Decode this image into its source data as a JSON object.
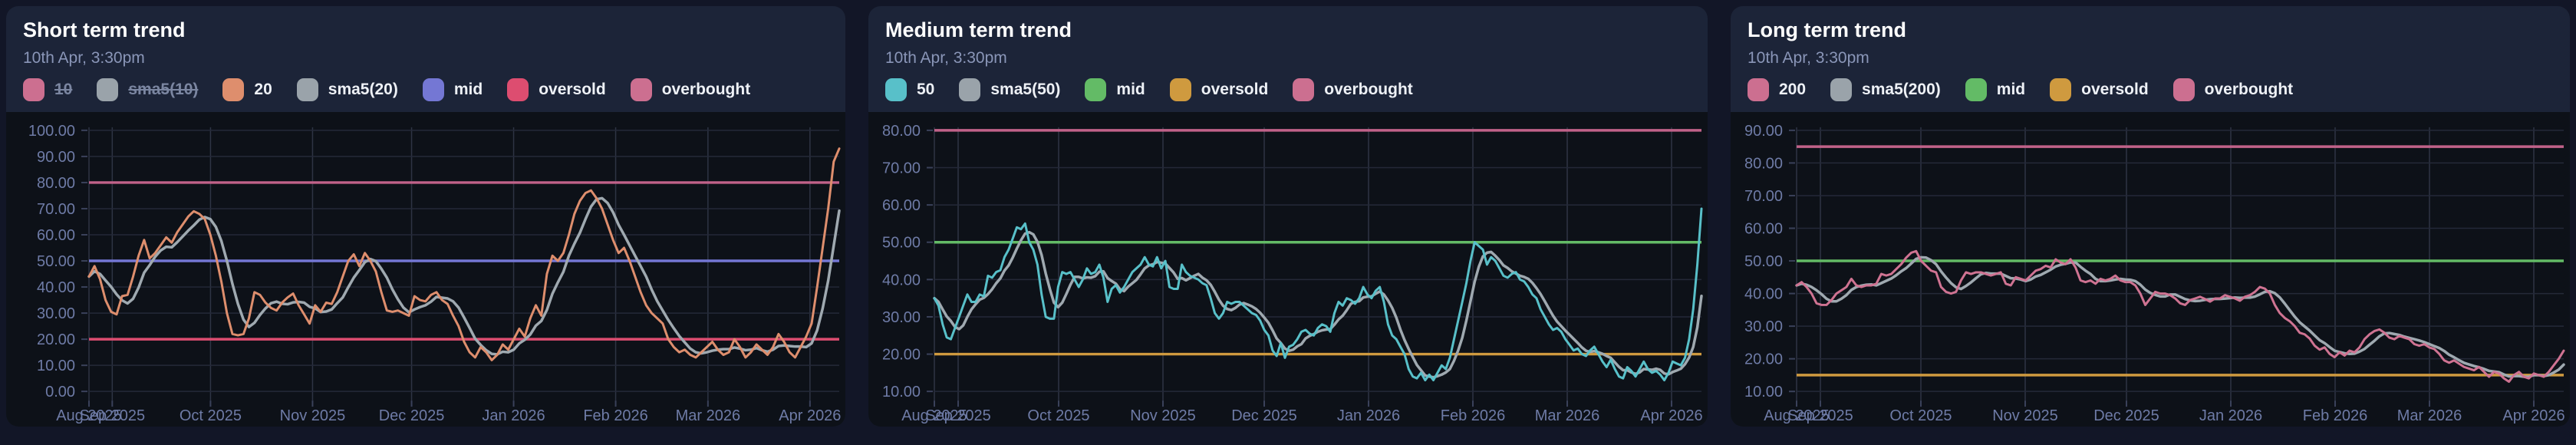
{
  "cards": [
    {
      "title": "Short term trend",
      "subtitle": "10th Apr, 3:30pm",
      "legend": [
        {
          "label": "10",
          "color": "#cc6f90",
          "disabled": true
        },
        {
          "label": "sma5(10)",
          "color": "#9aa3aa",
          "disabled": true
        },
        {
          "label": "20",
          "color": "#de8e6d",
          "disabled": false
        },
        {
          "label": "sma5(20)",
          "color": "#9aa3aa",
          "disabled": false
        },
        {
          "label": "mid",
          "color": "#7477d4",
          "disabled": false
        },
        {
          "label": "oversold",
          "color": "#dd4d70",
          "disabled": false
        },
        {
          "label": "overbought",
          "color": "#cc6f90",
          "disabled": false
        }
      ]
    },
    {
      "title": "Medium term trend",
      "subtitle": "10th Apr, 3:30pm",
      "legend": [
        {
          "label": "50",
          "color": "#58c0c9",
          "disabled": false
        },
        {
          "label": "sma5(50)",
          "color": "#9aa3aa",
          "disabled": false
        },
        {
          "label": "mid",
          "color": "#63bb66",
          "disabled": false
        },
        {
          "label": "oversold",
          "color": "#cf9a3f",
          "disabled": false
        },
        {
          "label": "overbought",
          "color": "#cc6f90",
          "disabled": false
        }
      ]
    },
    {
      "title": "Long term trend",
      "subtitle": "10th Apr, 3:30pm",
      "legend": [
        {
          "label": "200",
          "color": "#cc6f90",
          "disabled": false
        },
        {
          "label": "sma5(200)",
          "color": "#9aa3aa",
          "disabled": false
        },
        {
          "label": "mid",
          "color": "#63bb66",
          "disabled": false
        },
        {
          "label": "oversold",
          "color": "#cf9a3f",
          "disabled": false
        },
        {
          "label": "overbought",
          "color": "#cc6f90",
          "disabled": false
        }
      ]
    }
  ],
  "chart_data": [
    {
      "type": "line",
      "title": "Short term trend",
      "xlabel": "",
      "ylabel": "",
      "ylim": [
        0,
        100
      ],
      "yticks": [
        0,
        10,
        20,
        30,
        40,
        50,
        60,
        70,
        80,
        90,
        100
      ],
      "grid": true,
      "legend_position": "top",
      "plot_left": 108,
      "x_ticks": [
        {
          "label": "Aug 2025",
          "f": 0.0
        },
        {
          "label": "Sep 2025",
          "f": 0.031
        },
        {
          "label": "Oct 2025",
          "f": 0.162
        },
        {
          "label": "Nov 2025",
          "f": 0.298
        },
        {
          "label": "Dec 2025",
          "f": 0.43
        },
        {
          "label": "Jan 2026",
          "f": 0.566
        },
        {
          "label": "Feb 2026",
          "f": 0.702
        },
        {
          "label": "Mar 2026",
          "f": 0.825
        },
        {
          "label": "Apr 2026",
          "f": 0.961
        }
      ],
      "ref_lines": [
        {
          "name": "overbought",
          "value": 80,
          "color": "#c16289"
        },
        {
          "name": "mid",
          "value": 50,
          "color": "#7477d4"
        },
        {
          "name": "oversold",
          "value": 20,
          "color": "#dd4d70"
        }
      ],
      "series": [
        {
          "name": "20",
          "color": "#de8e6d",
          "values": [
            44,
            48,
            43,
            35,
            30.5,
            29.5,
            36.5,
            37,
            44,
            52,
            58,
            51,
            53,
            56,
            59,
            57,
            61,
            64,
            67,
            69,
            68,
            66,
            60,
            52,
            42,
            30,
            22,
            21.5,
            22,
            28,
            38,
            37,
            34,
            32,
            31,
            34,
            36,
            37.5,
            33,
            29.5,
            26,
            33,
            30.5,
            34,
            33.5,
            38,
            44,
            50,
            52.5,
            48,
            53,
            50,
            46,
            38,
            31,
            30.5,
            31,
            30,
            29,
            36.5,
            35,
            34.5,
            37,
            38,
            35,
            33.5,
            29,
            25,
            19,
            15,
            13,
            17,
            15,
            12,
            14,
            18,
            16,
            20,
            24,
            21,
            28,
            33,
            29,
            45,
            52,
            50,
            53,
            60,
            68,
            73,
            76,
            77,
            74,
            70,
            64,
            58,
            53,
            55,
            50,
            44,
            38,
            33,
            30,
            28,
            26,
            20,
            17,
            15,
            16,
            14,
            13,
            15,
            17,
            19,
            16,
            14,
            15,
            20,
            17,
            13,
            15,
            18,
            16,
            14,
            17,
            22,
            19,
            15,
            13,
            17,
            21,
            26,
            40,
            55,
            70,
            88,
            93
          ]
        },
        {
          "name": "sma5(20)",
          "color": "#9fa9b0",
          "sma_of": "20",
          "sma_window": 5
        }
      ]
    },
    {
      "type": "line",
      "title": "Medium term trend",
      "xlabel": "",
      "ylabel": "",
      "ylim": [
        10,
        80
      ],
      "yticks": [
        10,
        20,
        30,
        40,
        50,
        60,
        70,
        80
      ],
      "grid": true,
      "legend_position": "top",
      "plot_left": 86,
      "x_ticks": [
        {
          "label": "Aug 2025",
          "f": 0.0
        },
        {
          "label": "Sep 2025",
          "f": 0.031
        },
        {
          "label": "Oct 2025",
          "f": 0.162
        },
        {
          "label": "Nov 2025",
          "f": 0.298
        },
        {
          "label": "Dec 2025",
          "f": 0.43
        },
        {
          "label": "Jan 2026",
          "f": 0.566
        },
        {
          "label": "Feb 2026",
          "f": 0.702
        },
        {
          "label": "Mar 2026",
          "f": 0.825
        },
        {
          "label": "Apr 2026",
          "f": 0.961
        }
      ],
      "ref_lines": [
        {
          "name": "overbought",
          "value": 80,
          "color": "#c16289"
        },
        {
          "name": "mid",
          "value": 50,
          "color": "#63bb66"
        },
        {
          "name": "oversold",
          "value": 20,
          "color": "#cf9a3f"
        }
      ],
      "series": [
        {
          "name": "50",
          "color": "#58c0c9",
          "values": [
            35,
            33,
            28,
            24.5,
            24,
            27,
            30,
            33,
            36,
            34,
            34,
            36,
            35.5,
            41,
            40.5,
            42,
            42.5,
            46,
            48,
            51,
            54,
            53.5,
            55,
            50,
            48,
            44,
            36,
            30,
            29.5,
            29.5,
            38,
            42,
            41.5,
            42,
            40,
            38,
            40,
            43,
            41.5,
            42,
            44,
            40.5,
            34,
            37.5,
            38.5,
            36.5,
            38,
            40,
            42,
            43,
            44,
            46,
            44,
            43.5,
            46,
            43,
            45,
            38,
            37.5,
            37.5,
            44,
            42,
            41,
            40.5,
            40,
            39,
            38.5,
            35,
            31,
            29.5,
            31,
            34,
            33.5,
            34,
            34,
            33,
            32,
            31,
            30.5,
            29,
            26.5,
            25,
            21,
            19.5,
            23,
            19,
            22,
            22.5,
            24,
            26,
            26.5,
            25.5,
            25,
            27,
            28,
            27.5,
            26,
            31,
            34,
            33,
            35,
            34.5,
            33.5,
            35,
            38,
            36,
            35,
            37,
            38,
            34,
            28,
            25,
            24,
            22,
            20,
            16,
            14,
            13.5,
            15,
            13,
            14.5,
            13,
            15,
            17,
            16,
            19,
            24,
            29,
            34,
            39,
            45,
            50,
            49,
            48,
            44,
            46,
            45,
            43,
            41,
            40.5,
            41.5,
            42,
            40,
            39.5,
            38,
            36,
            35,
            32,
            30,
            28,
            26.5,
            27,
            26,
            24,
            22.5,
            21,
            21.5,
            20,
            19.5,
            21,
            22,
            20,
            18,
            16.5,
            18.5,
            16,
            14,
            13.5,
            16.5,
            15.5,
            14,
            16,
            18,
            16,
            15,
            15.5,
            14.5,
            13,
            15,
            18,
            17.5,
            17,
            19,
            24,
            32,
            44,
            59
          ]
        },
        {
          "name": "sma5(50)",
          "color": "#9fa9b0",
          "sma_of": "50",
          "sma_window": 5
        }
      ]
    },
    {
      "type": "line",
      "title": "Long term trend",
      "xlabel": "",
      "ylabel": "",
      "ylim": [
        10,
        90
      ],
      "yticks": [
        10,
        20,
        30,
        40,
        50,
        60,
        70,
        80,
        90
      ],
      "grid": true,
      "legend_position": "top",
      "plot_left": 86,
      "x_ticks": [
        {
          "label": "Aug 2025",
          "f": 0.0
        },
        {
          "label": "Sep 2025",
          "f": 0.031
        },
        {
          "label": "Oct 2025",
          "f": 0.162
        },
        {
          "label": "Nov 2025",
          "f": 0.298
        },
        {
          "label": "Dec 2025",
          "f": 0.43
        },
        {
          "label": "Jan 2026",
          "f": 0.566
        },
        {
          "label": "Feb 2026",
          "f": 0.702
        },
        {
          "label": "Mar 2026",
          "f": 0.825
        },
        {
          "label": "Apr 2026",
          "f": 0.961
        }
      ],
      "ref_lines": [
        {
          "name": "overbought",
          "value": 85,
          "color": "#c16289"
        },
        {
          "name": "mid",
          "value": 50,
          "color": "#63bb66"
        },
        {
          "name": "oversold",
          "value": 15,
          "color": "#cf9a3f"
        }
      ],
      "series": [
        {
          "name": "200",
          "color": "#cf7392",
          "values": [
            42.5,
            43.5,
            42,
            40,
            37,
            36.5,
            36.5,
            38,
            40,
            41,
            42,
            44.5,
            42.5,
            42,
            42.5,
            42.5,
            43,
            46,
            45.5,
            46,
            47.5,
            49,
            51,
            52.5,
            53,
            50,
            48.5,
            47,
            46.5,
            42,
            40.5,
            40,
            40.5,
            44,
            46.5,
            46,
            46.5,
            46.5,
            46,
            45.5,
            46,
            46.5,
            43,
            42.5,
            45,
            44.5,
            44,
            45.5,
            47,
            47.5,
            48.5,
            48,
            50.5,
            49.5,
            49,
            50.5,
            48,
            44,
            43.5,
            44,
            43,
            44.5,
            44,
            44.5,
            45.5,
            44,
            43.5,
            43.5,
            42.5,
            40,
            36.5,
            38.5,
            40.5,
            40,
            40,
            39.5,
            38.5,
            37,
            36.5,
            38,
            38.5,
            39,
            38.3,
            37.5,
            38.5,
            38.5,
            39.5,
            39,
            38.5,
            37.8,
            39,
            39.5,
            40.5,
            42,
            41.5,
            40,
            36.5,
            34,
            32.5,
            31.5,
            30,
            28,
            27.5,
            26.2,
            24,
            22.8,
            23.5,
            21.5,
            20.5,
            22,
            21,
            22.5,
            22,
            23.5,
            26,
            27.5,
            28.5,
            29,
            28,
            26.5,
            26,
            27,
            26.5,
            26,
            24.5,
            24,
            24.5,
            23.5,
            23,
            21.5,
            19.5,
            18.8,
            19.5,
            18.5,
            17.5,
            17,
            16.5,
            17.5,
            16,
            14.5,
            16,
            15.5,
            14,
            13,
            15,
            16,
            14.5,
            14,
            15.5,
            15,
            14.5,
            16,
            18,
            20,
            22.5
          ]
        },
        {
          "name": "sma5(200)",
          "color": "#9fa9b0",
          "sma_of": "200",
          "sma_window": 5
        }
      ]
    }
  ],
  "style": {
    "page_bg": "#121627",
    "card_bg": "#1c2438",
    "plot_bg": "#0d1118",
    "h_grid": "#242938",
    "v_grid": "#2e3444",
    "tick_mark": "#3a415a",
    "axis_label": "#6e7ba6"
  }
}
